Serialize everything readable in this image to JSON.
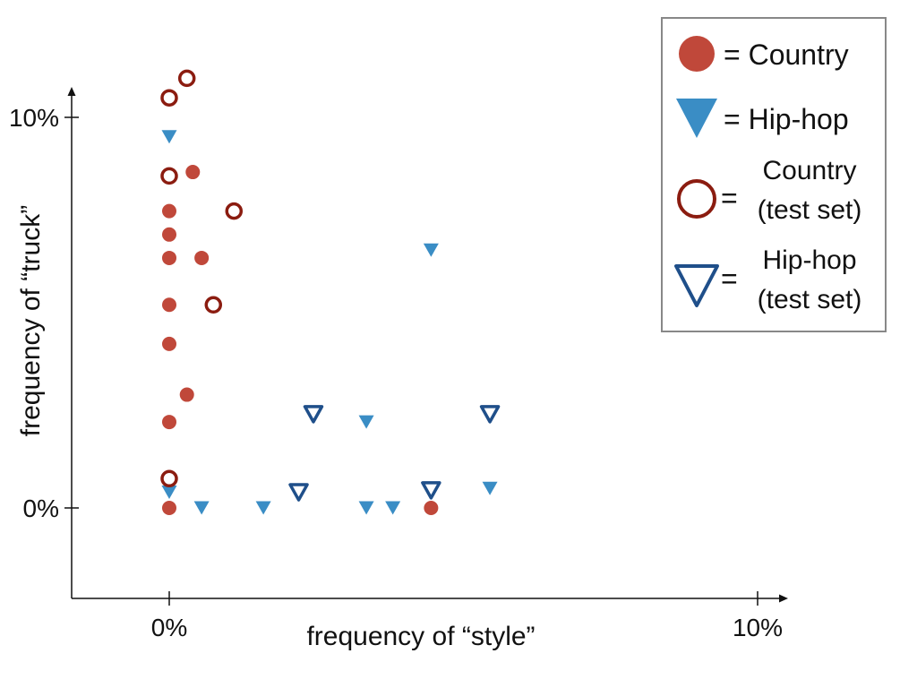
{
  "chart_data": {
    "type": "scatter",
    "title": "",
    "xlabel": "frequency of “style”",
    "ylabel": "frequency of “truck”",
    "xlim": [
      -1.65,
      10.55
    ],
    "ylim": [
      -2.3,
      10.85
    ],
    "xticks": [
      {
        "value": 0,
        "label": "0%"
      },
      {
        "value": 10,
        "label": "10%"
      }
    ],
    "yticks": [
      {
        "value": 0,
        "label": "0%"
      },
      {
        "value": 10,
        "label": "10%"
      }
    ],
    "grid": false,
    "legend_position": "top-right",
    "colors": {
      "country": "#c0483a",
      "hiphop": "#3a8dc5",
      "country_test": "#8b1c10",
      "hiphop_test": "#1f4f8a",
      "legend_border": "#888888",
      "axis": "#111111"
    },
    "series": [
      {
        "name": "Country",
        "marker": "filled-circle",
        "legend_label": "= Country",
        "points": [
          {
            "x": 0,
            "y": 7.6
          },
          {
            "x": 0,
            "y": 7.0
          },
          {
            "x": 0,
            "y": 6.4
          },
          {
            "x": 0,
            "y": 5.2
          },
          {
            "x": 0,
            "y": 4.2
          },
          {
            "x": 0,
            "y": 2.2
          },
          {
            "x": 0,
            "y": 0
          },
          {
            "x": 0.3,
            "y": 2.9
          },
          {
            "x": 0.4,
            "y": 8.6
          },
          {
            "x": 0.55,
            "y": 6.4
          },
          {
            "x": 4.45,
            "y": 0
          }
        ]
      },
      {
        "name": "Hip-hop",
        "marker": "filled-triangle-down",
        "legend_label": "= Hip-hop",
        "points": [
          {
            "x": 0,
            "y": 9.5
          },
          {
            "x": 0,
            "y": 0.4
          },
          {
            "x": 0.55,
            "y": 0
          },
          {
            "x": 1.6,
            "y": 0
          },
          {
            "x": 3.35,
            "y": 2.2
          },
          {
            "x": 3.35,
            "y": 0
          },
          {
            "x": 3.8,
            "y": 0
          },
          {
            "x": 4.45,
            "y": 6.6
          },
          {
            "x": 5.45,
            "y": 0.5
          }
        ]
      },
      {
        "name": "Country (test set)",
        "marker": "hollow-circle",
        "legend_label_top": "Country",
        "legend_label_bottom": "(test set)",
        "points": [
          {
            "x": 0,
            "y": 10.5
          },
          {
            "x": 0.3,
            "y": 11.0
          },
          {
            "x": 0,
            "y": 8.5
          },
          {
            "x": 1.1,
            "y": 7.6
          },
          {
            "x": 0.75,
            "y": 5.2
          },
          {
            "x": 0,
            "y": 0.75
          }
        ]
      },
      {
        "name": "Hip-hop (test set)",
        "marker": "hollow-triangle-down",
        "legend_label_top": "Hip-hop",
        "legend_label_bottom": "(test set)",
        "points": [
          {
            "x": 2.45,
            "y": 2.4
          },
          {
            "x": 2.2,
            "y": 0.4
          },
          {
            "x": 4.45,
            "y": 0.45
          },
          {
            "x": 5.45,
            "y": 2.4
          }
        ]
      }
    ]
  },
  "legend": {
    "equals_sign": "="
  }
}
